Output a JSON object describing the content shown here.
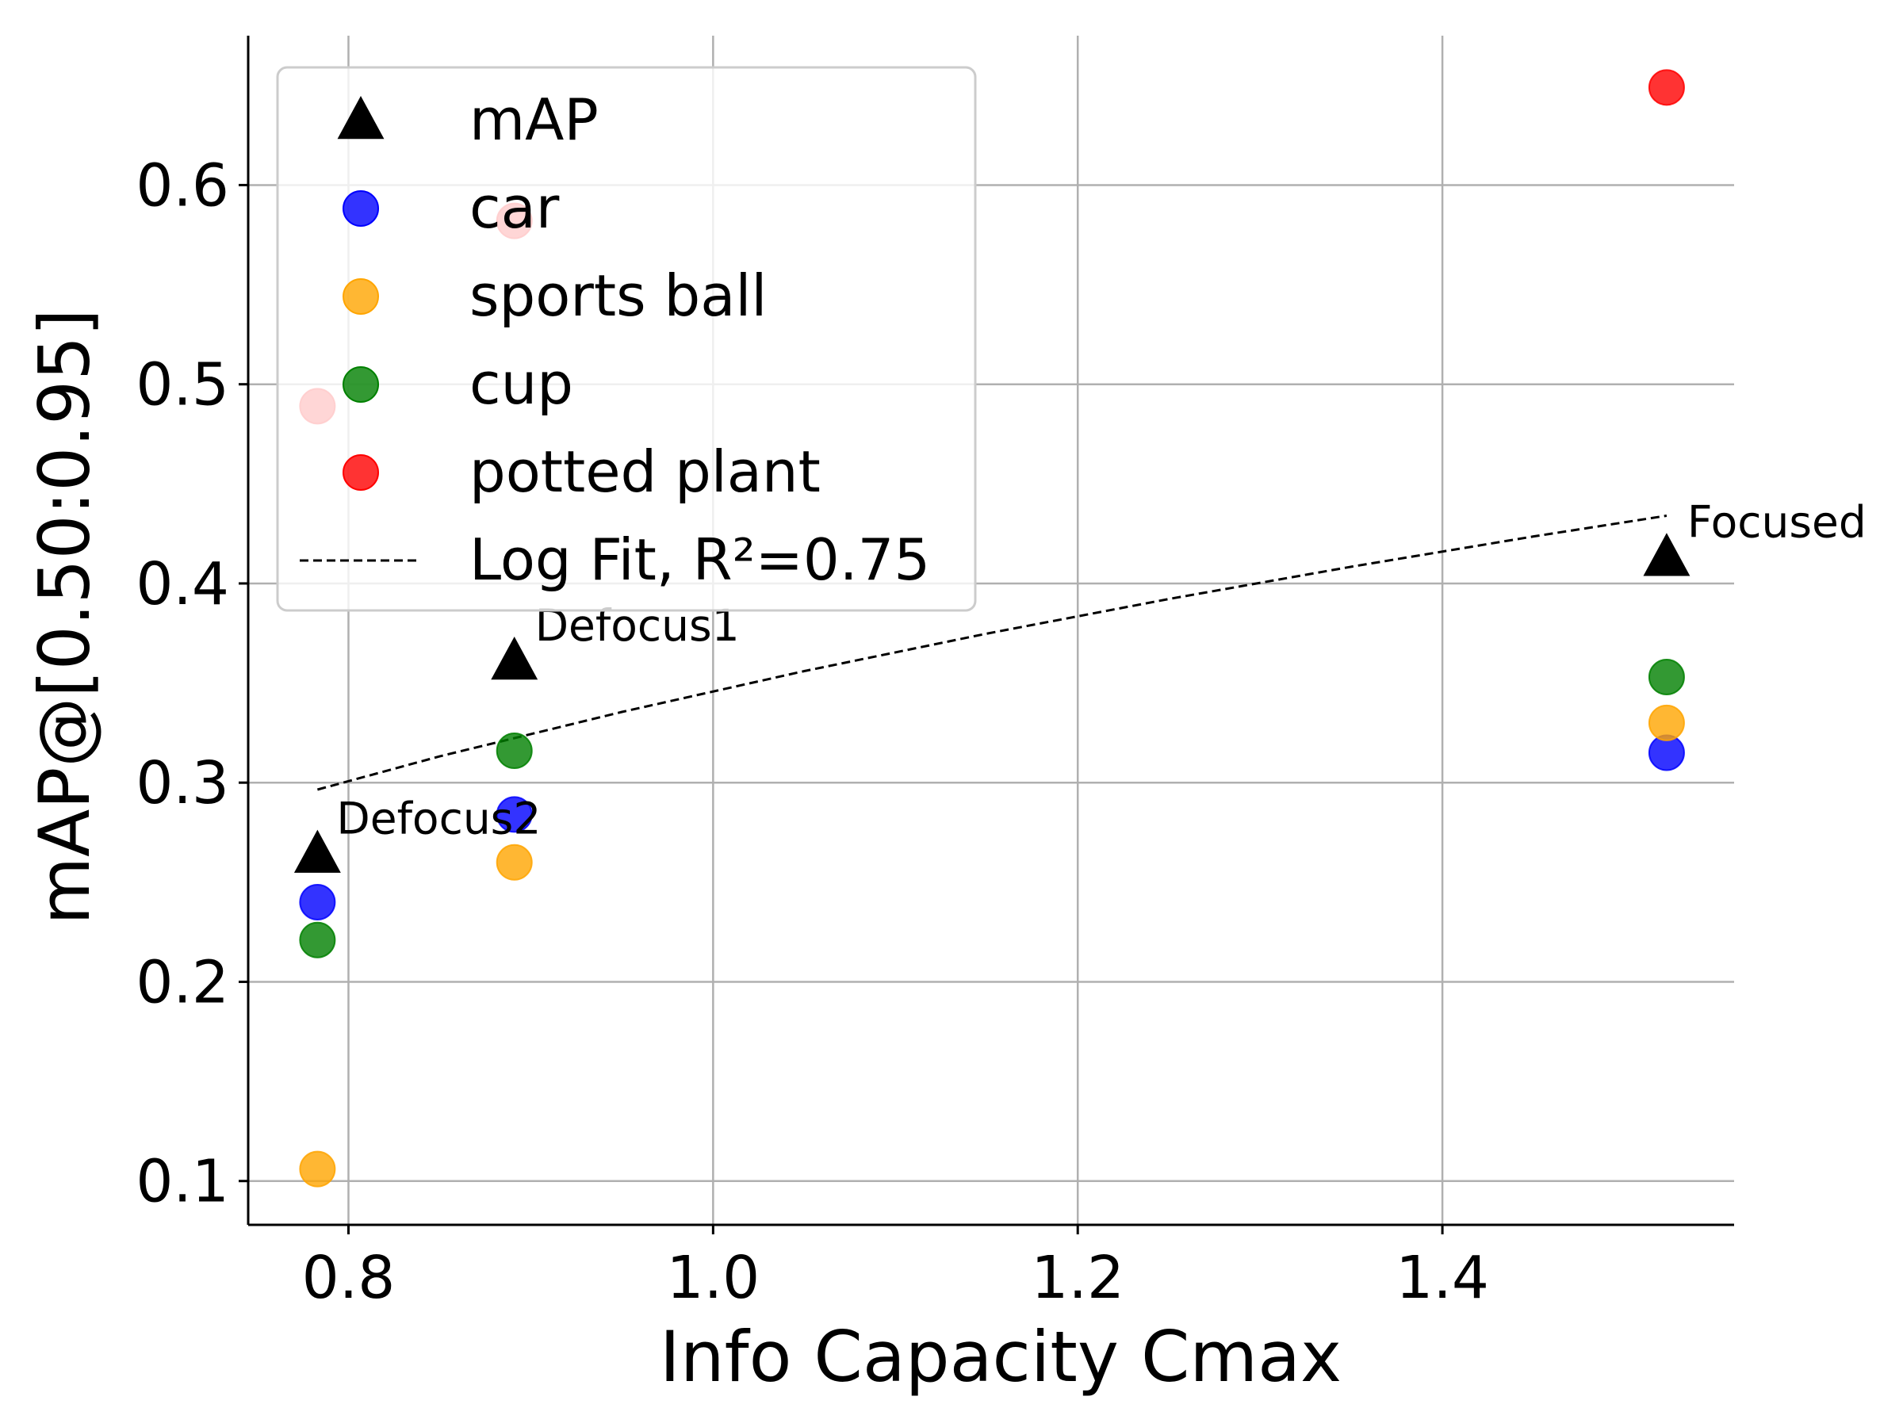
{
  "chart_data": {
    "type": "scatter",
    "title": "",
    "xlabel": "Info Capacity Cmax",
    "ylabel": "mAP@[0.50:0.95]",
    "xlim": [
      0.745,
      1.56
    ],
    "ylim": [
      0.078,
      0.675
    ],
    "xticks": [
      0.8,
      1.0,
      1.2,
      1.4
    ],
    "xtick_labels": [
      "0.8",
      "1.0",
      "1.2",
      "1.4"
    ],
    "yticks": [
      0.1,
      0.2,
      0.3,
      0.4,
      0.5,
      0.6
    ],
    "ytick_labels": [
      "0.1",
      "0.2",
      "0.3",
      "0.4",
      "0.5",
      "0.6"
    ],
    "grid": true,
    "legend_position": "top-left",
    "series": [
      {
        "name": "mAP",
        "marker": "triangle",
        "color": "#000000",
        "x": [
          0.783,
          0.891,
          1.523
        ],
        "y": [
          0.264,
          0.361,
          0.413
        ]
      },
      {
        "name": "car",
        "marker": "circle",
        "color": "#0000ff",
        "x": [
          0.783,
          0.891,
          1.523
        ],
        "y": [
          0.24,
          0.284,
          0.315
        ]
      },
      {
        "name": "sports ball",
        "marker": "circle",
        "color": "#ffa500",
        "x": [
          0.783,
          0.891,
          1.523
        ],
        "y": [
          0.106,
          0.26,
          0.33
        ]
      },
      {
        "name": "cup",
        "marker": "circle",
        "color": "#008000",
        "x": [
          0.783,
          0.891,
          1.523
        ],
        "y": [
          0.221,
          0.316,
          0.353
        ]
      },
      {
        "name": "potted plant",
        "marker": "circle",
        "color": "#ff0000",
        "x": [
          0.783,
          0.891,
          1.523
        ],
        "y": [
          0.489,
          0.582,
          0.649
        ]
      }
    ],
    "fit": {
      "name": "Log Fit, R²=0.75",
      "style": "dashed",
      "color": "#000000",
      "x": [
        0.783,
        0.85,
        0.95,
        1.05,
        1.15,
        1.25,
        1.35,
        1.45,
        1.523
      ],
      "y": [
        0.2965,
        0.3132,
        0.3355,
        0.356,
        0.3748,
        0.3922,
        0.4084,
        0.4236,
        0.434
      ]
    },
    "annotations": [
      {
        "text": "Defocus2",
        "x": 0.783,
        "y": 0.264
      },
      {
        "text": "Defocus1",
        "x": 0.891,
        "y": 0.361
      },
      {
        "text": "Focused",
        "x": 1.523,
        "y": 0.413
      }
    ]
  }
}
